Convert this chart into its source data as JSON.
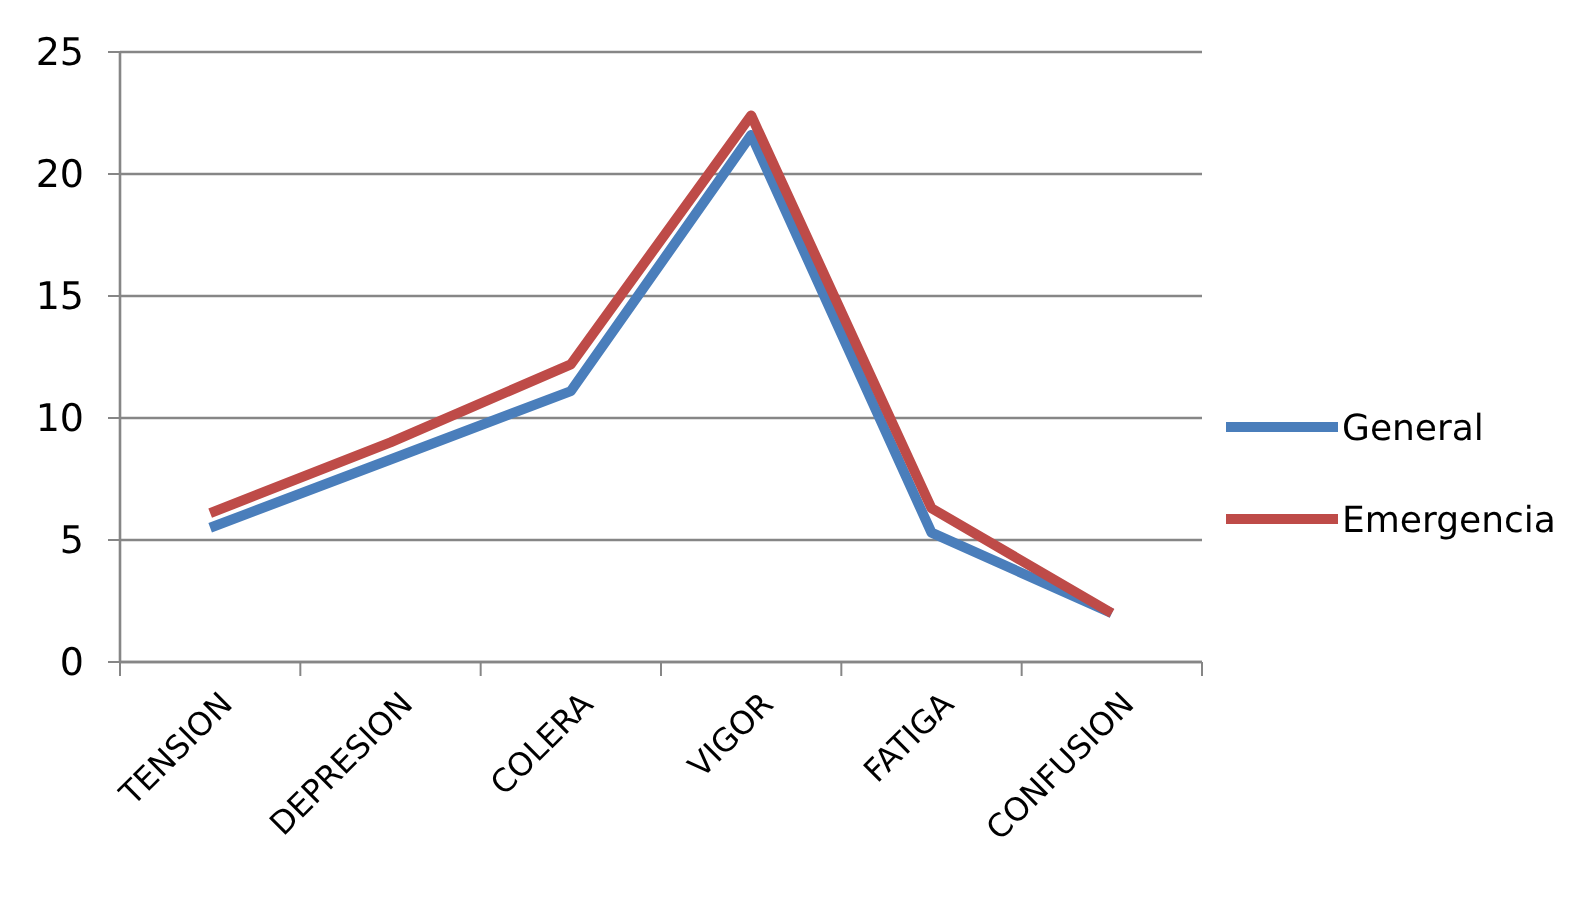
{
  "chart_data": {
    "type": "line",
    "categories": [
      "TENSION",
      "DEPRESION",
      "COLERA",
      "VIGOR",
      "FATIGA",
      "CONFUSION"
    ],
    "series": [
      {
        "name": "General",
        "color": "#4a7ebb",
        "values": [
          5.5,
          8.3,
          11.1,
          21.6,
          5.3,
          2.0
        ]
      },
      {
        "name": "Emergencia",
        "color": "#be4b48",
        "values": [
          6.1,
          9.0,
          12.2,
          22.4,
          6.3,
          2.0
        ]
      }
    ],
    "ylim": [
      0,
      25
    ],
    "yticks": [
      0,
      5,
      10,
      15,
      20,
      25
    ],
    "grid": "y",
    "legend": "right",
    "marker": "none",
    "line_style": "solid"
  }
}
